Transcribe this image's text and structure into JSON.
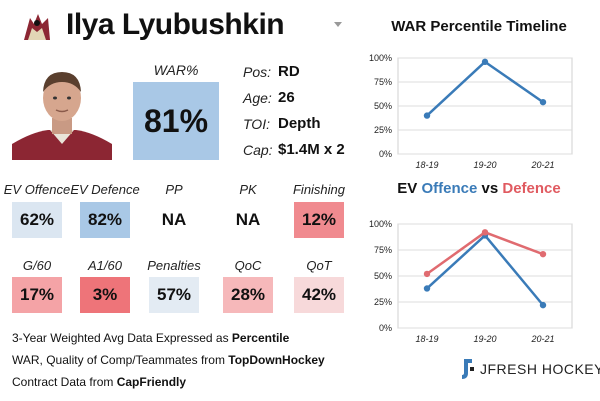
{
  "header": {
    "player_name": "Ilya Lyubushkin",
    "logo_icon": "coyotes-logo-icon"
  },
  "war": {
    "label": "WAR%",
    "value": "81%",
    "color": "#a9c8e6"
  },
  "info": [
    {
      "label": "Pos:",
      "value": "RD"
    },
    {
      "label": "Age:",
      "value": "26"
    },
    {
      "label": "TOI:",
      "value": "Depth"
    },
    {
      "label": "Cap:",
      "value": "$1.4M x 2"
    }
  ],
  "stats_row1": [
    {
      "label": "EV Offence",
      "value": "62%",
      "color": "#dbe6f1"
    },
    {
      "label": "EV Defence",
      "value": "82%",
      "color": "#a9c8e6"
    },
    {
      "label": "PP",
      "value": "NA",
      "color": "#ffffff"
    },
    {
      "label": "PK",
      "value": "NA",
      "color": "#ffffff"
    },
    {
      "label": "Finishing",
      "value": "12%",
      "color": "#f08a8f"
    }
  ],
  "stats_row2": [
    {
      "label": "G/60",
      "value": "17%",
      "color": "#f4a3a6"
    },
    {
      "label": "A1/60",
      "value": "3%",
      "color": "#ee7479"
    },
    {
      "label": "Penalties",
      "value": "57%",
      "color": "#e3ebf3"
    },
    {
      "label": "QoC",
      "value": "28%",
      "color": "#f6b8ba"
    },
    {
      "label": "QoT",
      "value": "42%",
      "color": "#f7d9da"
    }
  ],
  "footer": {
    "line1_prefix": "3-Year Weighted Avg Data Expressed as ",
    "line1_bold": "Percentile",
    "line2_prefix": "WAR, Quality of Comp/Teammates from ",
    "line2_bold": "TopDownHockey",
    "line3_prefix": "Contract Data from ",
    "line3_bold": "CapFriendly",
    "brand": "JFRESH HOCKEY"
  },
  "chart_data": [
    {
      "type": "line",
      "title": "WAR Percentile Timeline",
      "categories": [
        "18-19",
        "19-20",
        "20-21"
      ],
      "yticks": [
        "0%",
        "25%",
        "50%",
        "75%",
        "100%"
      ],
      "ylim": [
        0,
        100
      ],
      "grid": true,
      "series": [
        {
          "values": [
            40,
            96,
            54
          ],
          "color": "#3a7bb8"
        }
      ]
    },
    {
      "type": "line",
      "title_parts": [
        "EV ",
        "Offence",
        " vs ",
        "Defence"
      ],
      "title_colors": [
        "#111111",
        "#3a7bb8",
        "#111111",
        "#e05a60"
      ],
      "categories": [
        "18-19",
        "19-20",
        "20-21"
      ],
      "yticks": [
        "0%",
        "25%",
        "50%",
        "75%",
        "100%"
      ],
      "ylim": [
        0,
        100
      ],
      "grid": true,
      "series": [
        {
          "values": [
            38,
            89,
            22
          ],
          "color": "#3a7bb8"
        },
        {
          "values": [
            52,
            92,
            71
          ],
          "color": "#e06b70"
        }
      ]
    }
  ]
}
